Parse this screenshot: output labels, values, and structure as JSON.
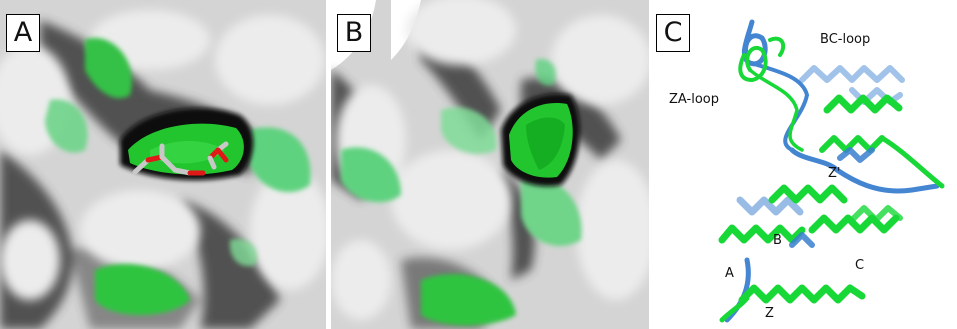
{
  "panels": [
    {
      "id": "A",
      "label": "A"
    },
    {
      "id": "B",
      "label": "B"
    },
    {
      "id": "C",
      "label": "C"
    }
  ],
  "structure_labels": {
    "bc_loop": "BC-loop",
    "za_loop": "ZA-loop",
    "z_prime": "Z'",
    "helix_b": "B",
    "helix_a": "A",
    "helix_c": "C",
    "helix_z": "Z"
  },
  "colors": {
    "surface": "#d9d9d9",
    "surface_shadow": "#2e2e2e",
    "pocket_green": "#22c52e",
    "hydrophobic_green": "#5cd47e",
    "ribbon_green": "#18d838",
    "ribbon_blue": "#3a7fd0",
    "ligand_oxygen": "#e01818",
    "ligand_carbon": "#bdbdbd"
  }
}
